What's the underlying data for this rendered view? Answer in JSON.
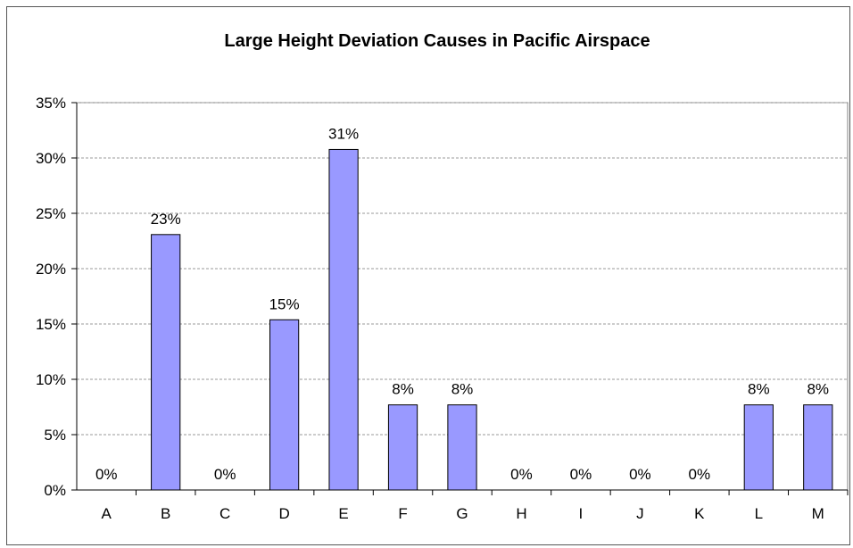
{
  "chart_data": {
    "type": "bar",
    "title": "Large Height Deviation Causes in Pacific Airspace",
    "xlabel": "",
    "ylabel": "",
    "categories": [
      "A",
      "B",
      "C",
      "D",
      "E",
      "F",
      "G",
      "H",
      "I",
      "J",
      "K",
      "L",
      "M"
    ],
    "values": [
      0,
      23.08,
      0,
      15.38,
      30.77,
      7.69,
      7.69,
      0,
      0,
      0,
      0,
      7.69,
      7.69
    ],
    "data_labels": [
      "0%",
      "23%",
      "0%",
      "15%",
      "31%",
      "8%",
      "8%",
      "0%",
      "0%",
      "0%",
      "0%",
      "8%",
      "8%"
    ],
    "y_ticks": [
      "0%",
      "5%",
      "10%",
      "15%",
      "20%",
      "25%",
      "30%",
      "35%"
    ],
    "ylim": [
      0,
      35
    ],
    "grid": "horizontal dashed",
    "legend": "none",
    "colors": {
      "bar_fill": "#9999ff",
      "bar_stroke": "#000000",
      "grid": "#999999",
      "plot_border": "#808080"
    }
  }
}
